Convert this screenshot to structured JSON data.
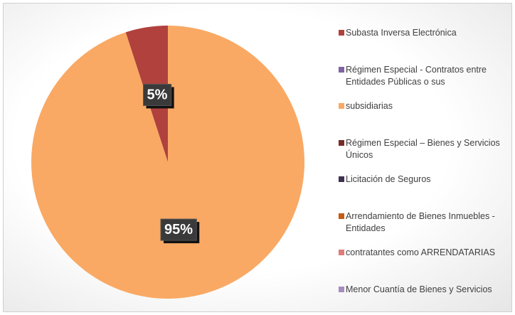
{
  "chart_data": {
    "type": "pie",
    "categories": [
      "Subasta Inversa Electrónica",
      "Régimen Especial - Contratos entre Entidades Públicas o sus",
      "subsidiarias",
      "Régimen Especial – Bienes y Servicios Únicos",
      "Licitación de Seguros",
      "Arrendamiento de Bienes Inmuebles - Entidades",
      "contratantes como ARRENDATARIAS",
      "Menor Cuantía de Bienes y Servicios"
    ],
    "values": [
      5,
      0,
      95,
      0,
      0,
      0,
      0,
      0
    ],
    "value_labels": [
      "5%",
      null,
      "95%",
      null,
      null,
      null,
      null,
      null
    ],
    "colors": [
      "#b0413d",
      "#8064a2",
      "#f9a964",
      "#772c2a",
      "#3f3151",
      "#c55a11",
      "#e07b7b",
      "#a68dbd"
    ],
    "legend": "right"
  }
}
